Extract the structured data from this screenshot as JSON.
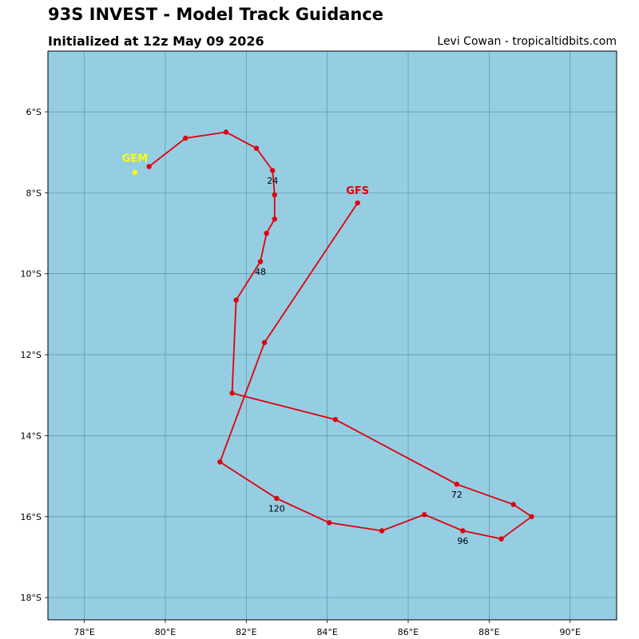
{
  "header": {
    "title": "93S INVEST - Model Track Guidance",
    "subtitle": "Initialized at 12z May 09 2026",
    "credit": "Levi Cowan - tropicaltidbits.com"
  },
  "map": {
    "ocean_color": "#95cde3",
    "grid_color": "#3f7a8c",
    "lon_range": [
      77.1,
      91.15
    ],
    "lat_range": [
      -18.55,
      -4.5
    ],
    "lon_ticks": [
      {
        "value": 78,
        "label": "78°E"
      },
      {
        "value": 80,
        "label": "80°E"
      },
      {
        "value": 82,
        "label": "82°E"
      },
      {
        "value": 84,
        "label": "84°E"
      },
      {
        "value": 86,
        "label": "86°E"
      },
      {
        "value": 88,
        "label": "88°E"
      },
      {
        "value": 90,
        "label": "90°E"
      }
    ],
    "lat_ticks": [
      {
        "value": -6,
        "label": "6°S"
      },
      {
        "value": -8,
        "label": "8°S"
      },
      {
        "value": -10,
        "label": "10°S"
      },
      {
        "value": -12,
        "label": "12°S"
      },
      {
        "value": -14,
        "label": "14°S"
      },
      {
        "value": -16,
        "label": "16°S"
      },
      {
        "value": -18,
        "label": "18°S"
      }
    ]
  },
  "tracks": [
    {
      "model": "GFS",
      "color": "#e0000a",
      "points": [
        [
          84.75,
          -8.25
        ],
        [
          82.45,
          -11.7
        ],
        [
          81.35,
          -14.65
        ],
        [
          82.75,
          -15.55
        ],
        [
          84.05,
          -16.15
        ],
        [
          85.35,
          -16.35
        ],
        [
          86.4,
          -15.95
        ],
        [
          87.35,
          -16.35
        ],
        [
          88.3,
          -16.55
        ],
        [
          89.05,
          -16.0
        ],
        [
          88.6,
          -15.7
        ],
        [
          87.2,
          -15.2
        ],
        [
          84.2,
          -13.6
        ],
        [
          81.65,
          -12.95
        ],
        [
          81.75,
          -10.65
        ],
        [
          82.35,
          -9.7
        ],
        [
          82.5,
          -9.0
        ],
        [
          82.7,
          -8.65
        ],
        [
          82.7,
          -8.05
        ],
        [
          82.65,
          -7.45
        ],
        [
          82.25,
          -6.9
        ],
        [
          81.5,
          -6.5
        ],
        [
          80.5,
          -6.65
        ],
        [
          79.6,
          -7.35
        ]
      ]
    },
    {
      "model": "GEM",
      "color": "#ffff00",
      "points": [
        [
          79.25,
          -7.5
        ]
      ]
    }
  ],
  "hour_labels": [
    {
      "text": "24",
      "lon": 82.65,
      "lat": -7.7
    },
    {
      "text": "48",
      "lon": 82.35,
      "lat": -9.95
    },
    {
      "text": "72",
      "lon": 87.2,
      "lat": -15.45
    },
    {
      "text": "96",
      "lon": 87.35,
      "lat": -16.6
    },
    {
      "text": "120",
      "lon": 82.75,
      "lat": -15.8
    }
  ],
  "model_labels": [
    {
      "text": "GFS",
      "lon": 84.75,
      "lat": -7.95,
      "color": "#e0000a"
    },
    {
      "text": "GEM",
      "lon": 79.25,
      "lat": -7.15,
      "color": "#ffff00"
    }
  ]
}
